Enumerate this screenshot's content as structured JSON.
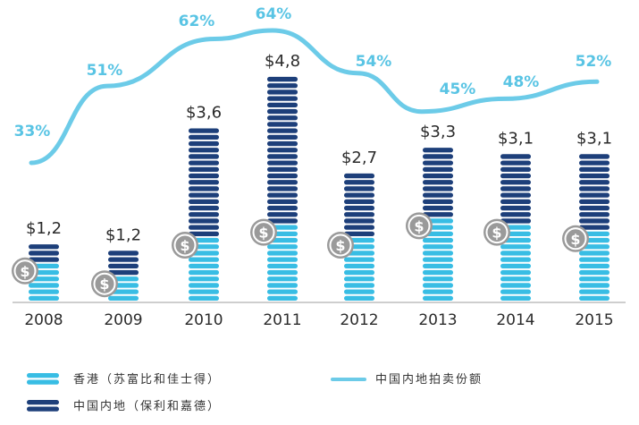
{
  "colors": {
    "hk": "#38bde4",
    "mainland": "#1d3f7a",
    "line": "#6ccbe8",
    "coin_bg": "#9a9a9a",
    "coin_fg": "#ffffff",
    "axis": "#b0b0b0"
  },
  "coin_symbol": "$",
  "legend": {
    "hk": "香港（苏富比和佳士得）",
    "mainland": "中国内地（保利和嘉德）",
    "line": "中国内地拍卖份额"
  },
  "chart_data": {
    "type": "bar",
    "stacked": true,
    "categories": [
      "2008",
      "2009",
      "2010",
      "2011",
      "2012",
      "2013",
      "2014",
      "2015"
    ],
    "value_labels": [
      "$1,2",
      "$1,2",
      "$3,6",
      "$4,8",
      "$2,7",
      "$3,3",
      "$3,1",
      "$3,1"
    ],
    "series": [
      {
        "name": "香港（苏富比和佳士得）",
        "values": [
          0.8,
          0.6,
          1.3,
          1.7,
          1.3,
          1.8,
          1.6,
          1.5
        ]
      },
      {
        "name": "中国内地（保利和嘉德）",
        "values": [
          0.4,
          0.6,
          2.3,
          3.1,
          1.4,
          1.5,
          1.5,
          1.6
        ]
      }
    ],
    "line_series": {
      "name": "中国内地拍卖份额",
      "values": [
        33,
        51,
        62,
        64,
        54,
        45,
        48,
        52
      ],
      "labels": [
        "33%",
        "51%",
        "62%",
        "64%",
        "54%",
        "45%",
        "48%",
        "52%"
      ]
    },
    "xlabel": "",
    "ylabel": "",
    "ylim": [
      0,
      4.8
    ],
    "grid": false,
    "legend_position": "bottom"
  }
}
